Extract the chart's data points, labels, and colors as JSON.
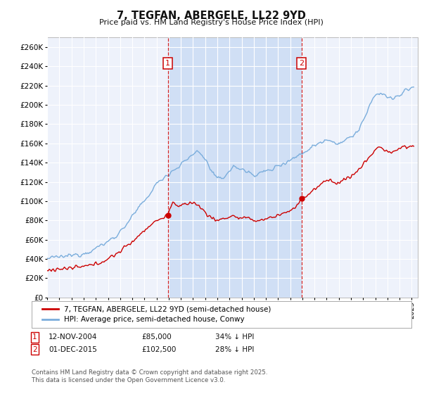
{
  "title": "7, TEGFAN, ABERGELE, LL22 9YD",
  "subtitle": "Price paid vs. HM Land Registry's House Price Index (HPI)",
  "xlim_start": 1995.0,
  "xlim_end": 2025.5,
  "ylim_min": 0,
  "ylim_max": 270000,
  "yticks": [
    0,
    20000,
    40000,
    60000,
    80000,
    100000,
    120000,
    140000,
    160000,
    180000,
    200000,
    220000,
    240000,
    260000
  ],
  "ytick_labels": [
    "£0",
    "£20K",
    "£40K",
    "£60K",
    "£80K",
    "£100K",
    "£120K",
    "£140K",
    "£160K",
    "£180K",
    "£200K",
    "£220K",
    "£240K",
    "£260K"
  ],
  "xticks": [
    1995,
    1996,
    1997,
    1998,
    1999,
    2000,
    2001,
    2002,
    2003,
    2004,
    2005,
    2006,
    2007,
    2008,
    2009,
    2010,
    2011,
    2012,
    2013,
    2014,
    2015,
    2016,
    2017,
    2018,
    2019,
    2020,
    2021,
    2022,
    2023,
    2024,
    2025
  ],
  "transaction1_date": 2004.92,
  "transaction1_price": 85000,
  "transaction2_date": 2015.92,
  "transaction2_price": 102500,
  "legend_entry1": "7, TEGFAN, ABERGELE, LL22 9YD (semi-detached house)",
  "legend_entry2": "HPI: Average price, semi-detached house, Conwy",
  "footer": "Contains HM Land Registry data © Crown copyright and database right 2025.\nThis data is licensed under the Open Government Licence v3.0.",
  "hpi_color": "#7aaddc",
  "price_color": "#cc0000",
  "background_plot": "#eef2fb",
  "shade_color": "#d0dff5",
  "background_fig": "#ffffff",
  "grid_color": "#ffffff",
  "vline_color": "#cc0000"
}
